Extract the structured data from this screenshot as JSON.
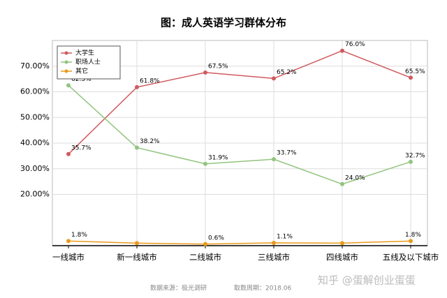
{
  "chart_data": {
    "type": "line",
    "title": "图：成人英语学习群体分布",
    "categories": [
      "一线城市",
      "新一线城市",
      "二线城市",
      "三线城市",
      "四线城市",
      "五线及以下城市"
    ],
    "series": [
      {
        "name": "大学生",
        "color": "#d05a5e",
        "values": [
          35.7,
          61.8,
          67.5,
          65.2,
          76.0,
          65.5
        ],
        "value_labels": [
          "35.7%",
          "61.8%",
          "67.5%",
          "65.2%",
          "76.0%",
          "65.5%"
        ]
      },
      {
        "name": "职场人士",
        "color": "#92c47e",
        "values": [
          62.5,
          38.2,
          31.9,
          33.7,
          24.0,
          32.7
        ],
        "value_labels": [
          "62.5%",
          "38.2%",
          "31.9%",
          "33.7%",
          "24.0%",
          "32.7%"
        ]
      },
      {
        "name": "其它",
        "color": "#e89a1c",
        "values": [
          1.8,
          1.0,
          0.6,
          1.1,
          1.0,
          1.8
        ],
        "value_labels": [
          "1.8%",
          null,
          "0.6%",
          "1.1%",
          null,
          "1.8%"
        ]
      }
    ],
    "ylim": [
      0,
      80
    ],
    "yticks": [
      {
        "value": 20,
        "label": "20.00%"
      },
      {
        "value": 30,
        "label": "30.00%"
      },
      {
        "value": 40,
        "label": "40.00%"
      },
      {
        "value": 50,
        "label": "50.00%"
      },
      {
        "value": 60,
        "label": "60.00%"
      },
      {
        "value": 70,
        "label": "70.00%"
      }
    ],
    "grid": true,
    "legend": "top-left",
    "source": "数据来源：极光调研",
    "period": "取数周期：2018.06",
    "watermark": "知乎 @蛋解创业蛋蛋"
  }
}
